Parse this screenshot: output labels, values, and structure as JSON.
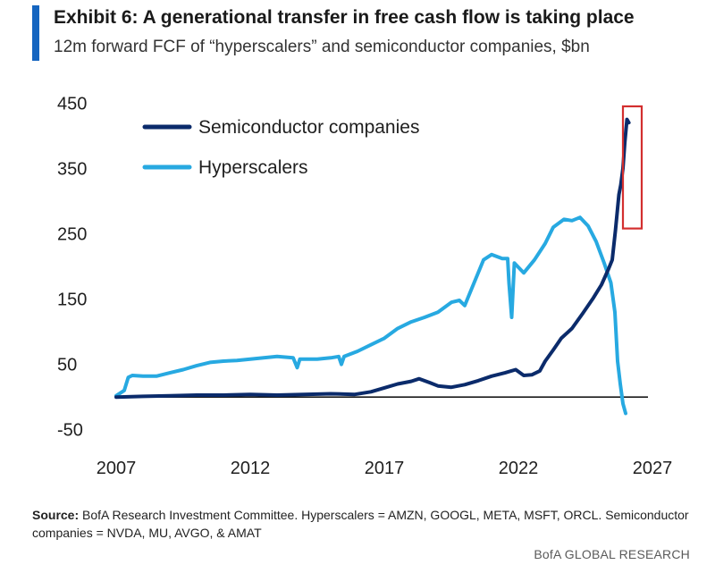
{
  "header": {
    "title": "Exhibit 6: A generational transfer in free cash flow is taking place",
    "subtitle": "12m forward FCF of “hyperscalers” and semiconductor companies, $bn"
  },
  "footer": {
    "source_label": "Source:",
    "source_text": " BofA Research Investment Committee. Hyperscalers = AMZN, GOOGL, META, MSFT, ORCL. Semiconductor companies = NVDA, MU, AVGO, & AMAT",
    "brand": "BofA GLOBAL RESEARCH"
  },
  "colors": {
    "semiconductor": "#0b2b6b",
    "hyperscalers": "#27a9e1",
    "highlight": "#d32f2f",
    "accent": "#1565c0"
  },
  "chart_data": {
    "type": "line",
    "title": "",
    "xlabel": "",
    "ylabel": "",
    "xlim": [
      2007,
      2028.5
    ],
    "ylim": [
      -60,
      460
    ],
    "x_ticks": [
      2007,
      2012,
      2017,
      2022,
      2027
    ],
    "y_ticks": [
      450,
      350,
      250,
      150,
      50,
      -50
    ],
    "legend_position": "top-left",
    "grid": false,
    "zero_line": true,
    "annotations": [
      {
        "type": "rectangle",
        "x_range": [
          2025.9,
          2026.6
        ],
        "y_range": [
          258,
          445
        ],
        "note": "highlights latest semiconductor values"
      }
    ],
    "series": [
      {
        "name": "Semiconductor companies",
        "color": "#0b2b6b",
        "points": [
          [
            2007.0,
            0
          ],
          [
            2008.0,
            1
          ],
          [
            2009.0,
            2
          ],
          [
            2010.0,
            3
          ],
          [
            2011.0,
            3
          ],
          [
            2012.0,
            4
          ],
          [
            2013.0,
            3
          ],
          [
            2014.0,
            4
          ],
          [
            2015.0,
            5
          ],
          [
            2015.9,
            4
          ],
          [
            2016.5,
            8
          ],
          [
            2017.0,
            14
          ],
          [
            2017.5,
            20
          ],
          [
            2018.0,
            24
          ],
          [
            2018.3,
            28
          ],
          [
            2018.7,
            22
          ],
          [
            2019.0,
            17
          ],
          [
            2019.5,
            15
          ],
          [
            2020.0,
            19
          ],
          [
            2020.5,
            25
          ],
          [
            2021.0,
            32
          ],
          [
            2021.5,
            37
          ],
          [
            2021.9,
            42
          ],
          [
            2022.2,
            33
          ],
          [
            2022.5,
            34
          ],
          [
            2022.8,
            40
          ],
          [
            2023.0,
            55
          ],
          [
            2023.3,
            72
          ],
          [
            2023.6,
            90
          ],
          [
            2024.0,
            105
          ],
          [
            2024.4,
            128
          ],
          [
            2024.8,
            152
          ],
          [
            2025.1,
            172
          ],
          [
            2025.35,
            195
          ],
          [
            2025.5,
            210
          ],
          [
            2025.62,
            255
          ],
          [
            2025.75,
            310
          ],
          [
            2025.82,
            325
          ],
          [
            2025.9,
            350
          ],
          [
            2025.97,
            390
          ],
          [
            2026.05,
            425
          ],
          [
            2026.12,
            420
          ]
        ]
      },
      {
        "name": "Hyperscalers",
        "color": "#27a9e1",
        "points": [
          [
            2007.0,
            2
          ],
          [
            2007.3,
            10
          ],
          [
            2007.45,
            30
          ],
          [
            2007.6,
            33
          ],
          [
            2008.0,
            32
          ],
          [
            2008.5,
            32
          ],
          [
            2009.0,
            37
          ],
          [
            2009.5,
            42
          ],
          [
            2010.0,
            48
          ],
          [
            2010.5,
            53
          ],
          [
            2011.0,
            55
          ],
          [
            2011.5,
            56
          ],
          [
            2012.0,
            58
          ],
          [
            2012.5,
            60
          ],
          [
            2013.0,
            62
          ],
          [
            2013.6,
            60
          ],
          [
            2013.75,
            45
          ],
          [
            2013.85,
            58
          ],
          [
            2014.5,
            58
          ],
          [
            2015.0,
            60
          ],
          [
            2015.3,
            62
          ],
          [
            2015.4,
            50
          ],
          [
            2015.5,
            62
          ],
          [
            2016.0,
            70
          ],
          [
            2016.5,
            80
          ],
          [
            2017.0,
            90
          ],
          [
            2017.5,
            105
          ],
          [
            2018.0,
            115
          ],
          [
            2018.5,
            122
          ],
          [
            2019.0,
            130
          ],
          [
            2019.5,
            145
          ],
          [
            2019.8,
            148
          ],
          [
            2020.0,
            140
          ],
          [
            2020.3,
            170
          ],
          [
            2020.7,
            210
          ],
          [
            2021.0,
            218
          ],
          [
            2021.4,
            212
          ],
          [
            2021.6,
            212
          ],
          [
            2021.65,
            175
          ],
          [
            2021.75,
            122
          ],
          [
            2021.85,
            205
          ],
          [
            2022.2,
            190
          ],
          [
            2022.6,
            210
          ],
          [
            2023.0,
            235
          ],
          [
            2023.3,
            260
          ],
          [
            2023.7,
            272
          ],
          [
            2024.0,
            270
          ],
          [
            2024.3,
            275
          ],
          [
            2024.6,
            262
          ],
          [
            2024.9,
            238
          ],
          [
            2025.2,
            205
          ],
          [
            2025.45,
            175
          ],
          [
            2025.6,
            130
          ],
          [
            2025.7,
            55
          ],
          [
            2025.8,
            20
          ],
          [
            2025.9,
            -10
          ],
          [
            2026.0,
            -25
          ]
        ]
      }
    ]
  }
}
